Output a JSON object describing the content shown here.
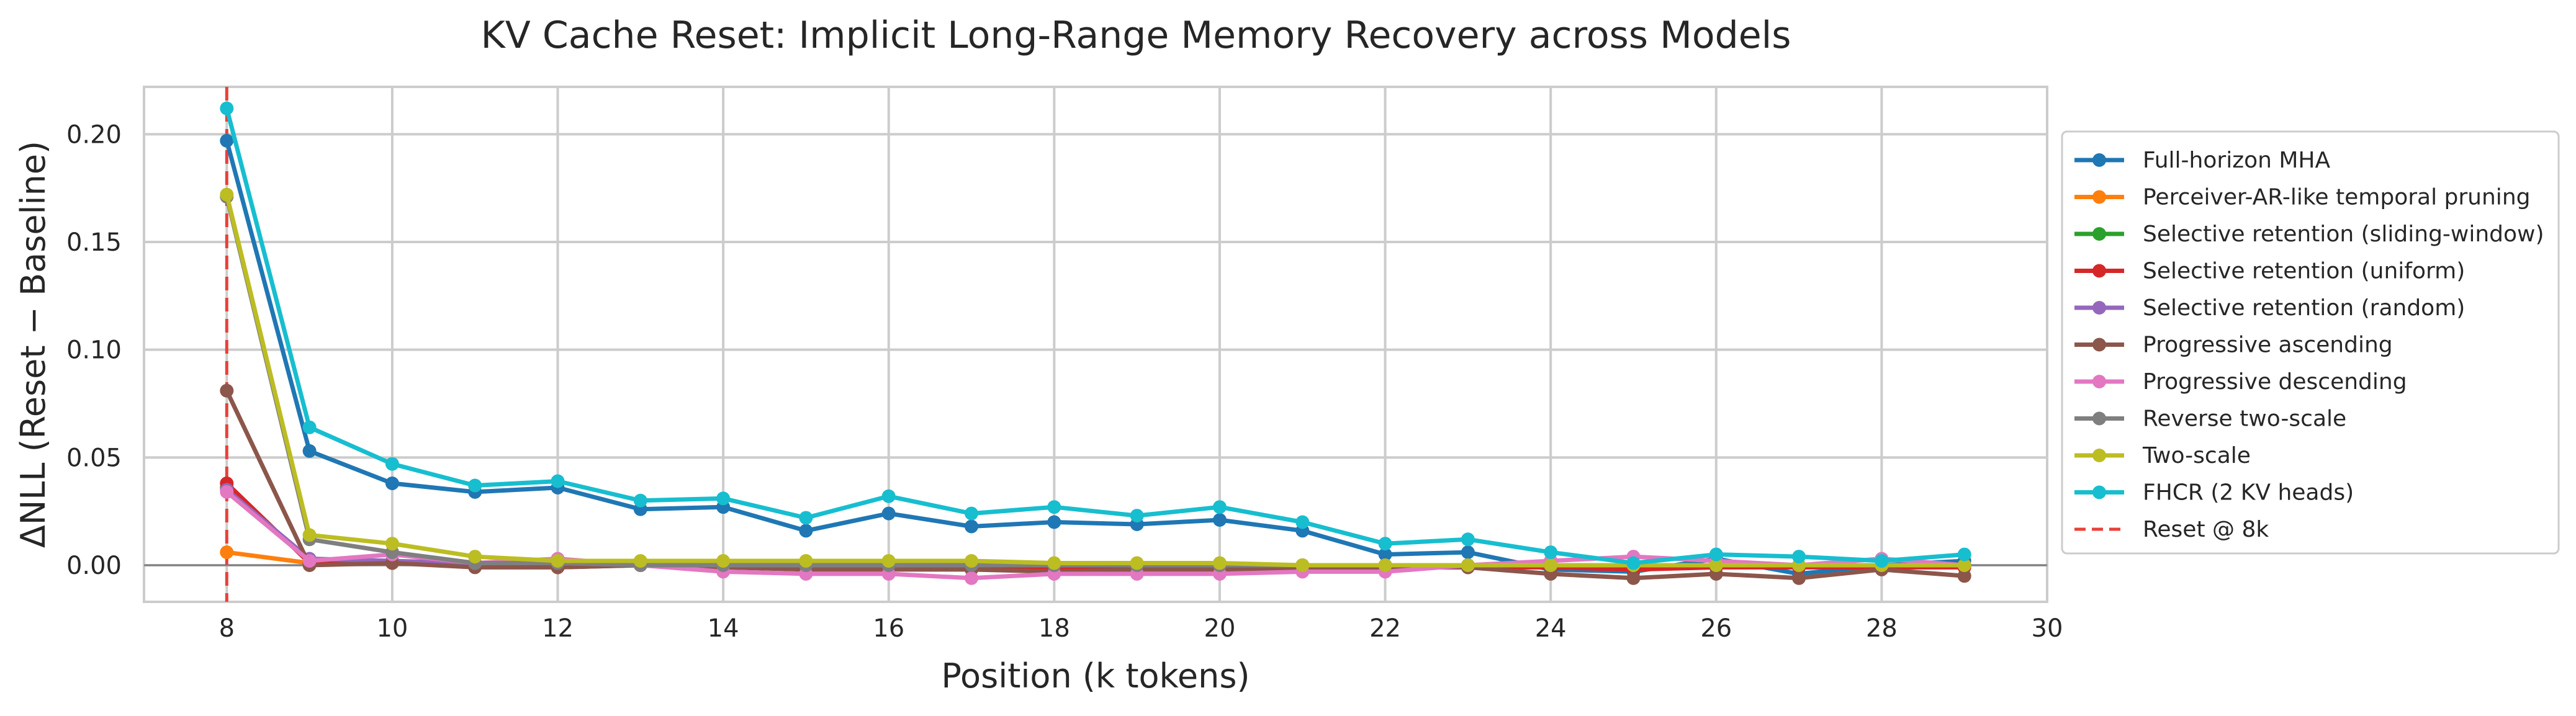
{
  "chart_data": {
    "type": "line",
    "title": "KV Cache Reset: Implicit Long-Range Memory Recovery across Models",
    "xlabel": "Position (k tokens)",
    "ylabel": "ΔNLL (Reset − Baseline)",
    "xlim": [
      7,
      30
    ],
    "ylim": [
      -0.017,
      0.222
    ],
    "xticks": [
      8,
      10,
      12,
      14,
      16,
      18,
      20,
      22,
      24,
      26,
      28,
      30
    ],
    "yticks": [
      0.0,
      0.05,
      0.1,
      0.15,
      0.2
    ],
    "ytick_labels": [
      "0.00",
      "0.05",
      "0.10",
      "0.15",
      "0.20"
    ],
    "grid": true,
    "legend_position": "outside-right",
    "zero_line": true,
    "x": [
      8,
      9,
      10,
      11,
      12,
      13,
      14,
      15,
      16,
      17,
      18,
      19,
      20,
      21,
      22,
      23,
      24,
      25,
      26,
      27,
      28,
      29
    ],
    "series": [
      {
        "name": "Full-horizon MHA",
        "color": "#1f77b4",
        "values": [
          0.197,
          0.053,
          0.038,
          0.034,
          0.036,
          0.026,
          0.027,
          0.016,
          0.024,
          0.018,
          0.02,
          0.019,
          0.021,
          0.016,
          0.005,
          0.006,
          -0.002,
          -0.003,
          0.003,
          -0.004,
          0.0,
          0.002
        ]
      },
      {
        "name": "Perceiver-AR-like temporal pruning",
        "color": "#ff7f0e",
        "values": [
          0.006,
          0.001,
          0.001,
          0.0,
          0.0,
          0.0,
          0.0,
          0.0,
          0.0,
          0.0,
          0.0,
          0.0,
          0.0,
          0.0,
          0.0,
          0.0,
          0.0,
          0.0,
          0.0,
          0.0,
          0.0,
          0.0
        ]
      },
      {
        "name": "Selective retention (sliding-window)",
        "color": "#2ca02c",
        "values": [
          0.036,
          0.002,
          0.002,
          0.0,
          0.001,
          0.0,
          0.0,
          0.0,
          0.0,
          0.0,
          -0.001,
          0.0,
          0.0,
          0.0,
          0.0,
          0.0,
          0.0,
          -0.001,
          0.0,
          0.0,
          0.0,
          0.0
        ]
      },
      {
        "name": "Selective retention (uniform)",
        "color": "#d62728",
        "values": [
          0.038,
          0.001,
          0.002,
          0.0,
          -0.001,
          0.0,
          -0.001,
          -0.001,
          -0.001,
          -0.001,
          -0.001,
          -0.001,
          -0.001,
          -0.001,
          -0.001,
          -0.001,
          -0.001,
          -0.002,
          -0.001,
          -0.001,
          -0.001,
          -0.001
        ]
      },
      {
        "name": "Selective retention (random)",
        "color": "#9467bd",
        "values": [
          0.035,
          0.003,
          0.002,
          0.001,
          0.001,
          0.0,
          0.0,
          0.0,
          0.0,
          0.0,
          0.0,
          0.0,
          0.0,
          0.0,
          0.0,
          0.0,
          0.0,
          0.0,
          0.0,
          0.0,
          0.0,
          0.0
        ]
      },
      {
        "name": "Progressive ascending",
        "color": "#8c564b",
        "values": [
          0.081,
          0.0,
          0.001,
          -0.001,
          -0.001,
          0.0,
          -0.001,
          -0.002,
          -0.002,
          -0.002,
          -0.003,
          -0.002,
          -0.002,
          -0.002,
          -0.001,
          -0.001,
          -0.004,
          -0.006,
          -0.004,
          -0.006,
          -0.002,
          -0.005
        ]
      },
      {
        "name": "Progressive descending",
        "color": "#e377c2",
        "values": [
          0.034,
          0.002,
          0.005,
          0.001,
          0.003,
          0.0,
          -0.003,
          -0.004,
          -0.004,
          -0.006,
          -0.004,
          -0.004,
          -0.004,
          -0.003,
          -0.003,
          0.0,
          0.002,
          0.004,
          0.002,
          0.0,
          0.003,
          0.0
        ]
      },
      {
        "name": "Reverse two-scale",
        "color": "#7f7f7f",
        "values": [
          0.171,
          0.012,
          0.006,
          0.001,
          0.001,
          0.0,
          0.0,
          0.0,
          0.0,
          0.0,
          0.0,
          0.0,
          0.0,
          0.0,
          0.0,
          0.0,
          0.0,
          0.0,
          0.0,
          0.0,
          0.0,
          0.0
        ]
      },
      {
        "name": "Two-scale",
        "color": "#bcbd22",
        "values": [
          0.172,
          0.014,
          0.01,
          0.004,
          0.002,
          0.002,
          0.002,
          0.002,
          0.002,
          0.002,
          0.001,
          0.001,
          0.001,
          0.0,
          0.0,
          0.0,
          0.0,
          0.0,
          0.0,
          0.0,
          0.0,
          0.0
        ]
      },
      {
        "name": "FHCR (2 KV heads)",
        "color": "#17becf",
        "values": [
          0.212,
          0.064,
          0.047,
          0.037,
          0.039,
          0.03,
          0.031,
          0.022,
          0.032,
          0.024,
          0.027,
          0.023,
          0.027,
          0.02,
          0.01,
          0.012,
          0.006,
          0.001,
          0.005,
          0.004,
          0.002,
          0.005
        ]
      }
    ],
    "reset_line": {
      "name": "Reset @ 8k",
      "x": 8,
      "color": "#e8413a"
    }
  }
}
